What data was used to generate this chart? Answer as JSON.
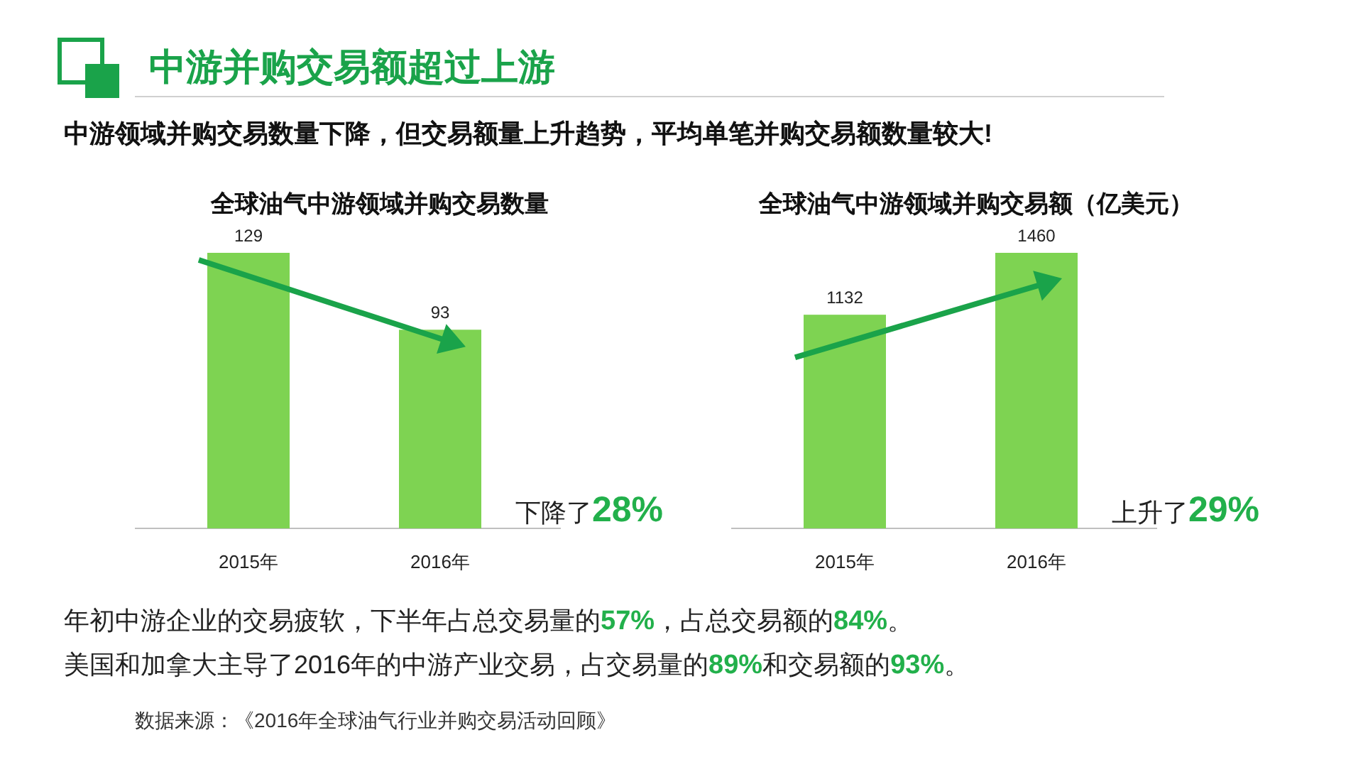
{
  "chart_data": [
    {
      "type": "other",
      "title": "中游并购交易额超过上游",
      "subtitle": "中游领域并购交易数量下降，但交易额量上升趋势，平均单笔并购交易额数量较大!",
      "annotations": [
        "年初中游企业的交易疲软，下半年占总交易量的57%，占总交易额的84%。",
        "美国和加拿大主导了2016年的中游产业交易，占交易量的89%和交易额的93%。",
        "数据来源：《2016年全球油气行业并购交易活动回顾》"
      ]
    },
    {
      "type": "bar",
      "title": "全球油气中游领域并购交易数量",
      "categories": [
        "2015年",
        "2016年"
      ],
      "values": [
        129,
        93
      ],
      "color": "#7ed352",
      "data_labels": true,
      "annotations": [
        "下降了28%"
      ]
    },
    {
      "type": "bar",
      "title": "全球油气中游领域并购交易额（亿美元）",
      "categories": [
        "2015年",
        "2016年"
      ],
      "values": [
        1132,
        1460
      ],
      "color": "#7ed352",
      "data_labels": true,
      "annotations": [
        "上升了29%"
      ]
    }
  ]
}
